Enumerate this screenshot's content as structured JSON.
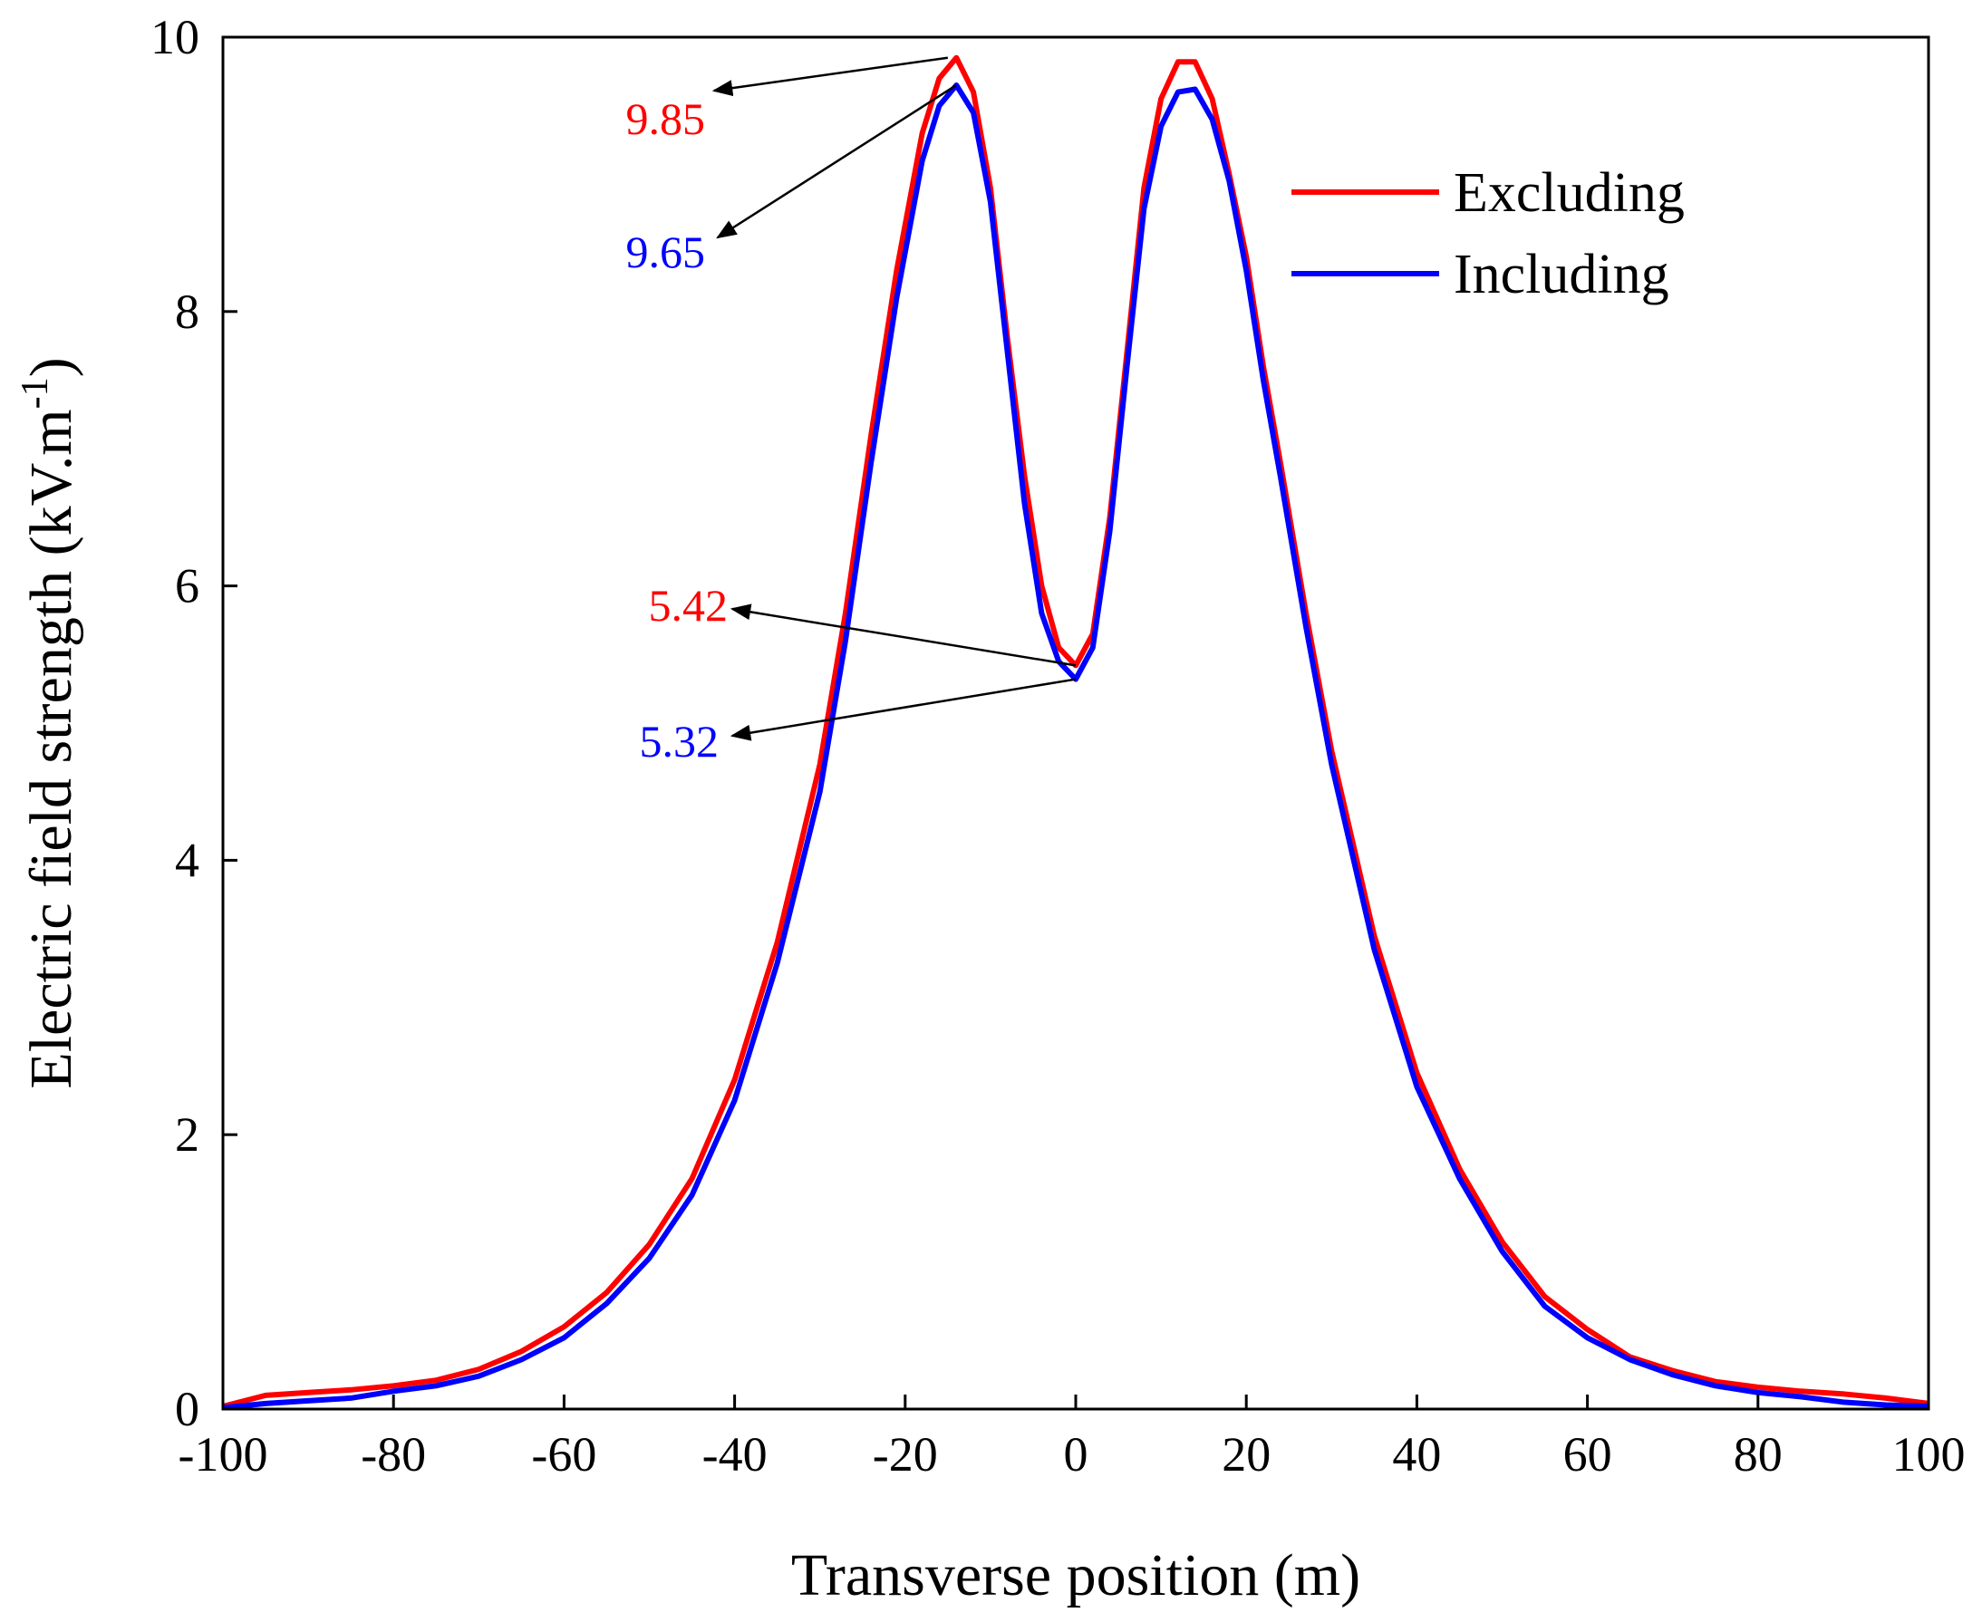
{
  "chart_data": {
    "type": "line",
    "title": "",
    "xlabel": "Transverse position (m)",
    "ylabel": "Electric field strength (kV.m",
    "ylabel_sup": "-1",
    "ylabel_close": ")",
    "xlim": [
      -100,
      100
    ],
    "ylim": [
      0,
      10
    ],
    "xticks": [
      "-100",
      "-80",
      "-60",
      "-40",
      "-20",
      "0",
      "20",
      "40",
      "60",
      "80",
      "100"
    ],
    "yticks": [
      "0",
      "2",
      "4",
      "6",
      "8",
      "10"
    ],
    "legend_position": "top-right",
    "x": [
      -100,
      -95,
      -90,
      -85,
      -80,
      -75,
      -70,
      -65,
      -60,
      -55,
      -50,
      -45,
      -40,
      -35,
      -30,
      -27,
      -24,
      -21,
      -18,
      -16,
      -14,
      -12,
      -10,
      -8,
      -6,
      -4,
      -2,
      0,
      2,
      4,
      6,
      8,
      10,
      12,
      14,
      16,
      18,
      20,
      22,
      24,
      27,
      30,
      35,
      40,
      45,
      50,
      55,
      60,
      65,
      70,
      75,
      80,
      85,
      90,
      95,
      100
    ],
    "series": [
      {
        "name": "Excluding",
        "color": "#ff0000",
        "values": [
          0.02,
          0.1,
          0.12,
          0.14,
          0.17,
          0.21,
          0.29,
          0.42,
          0.6,
          0.85,
          1.2,
          1.68,
          2.4,
          3.4,
          4.7,
          5.8,
          7.1,
          8.3,
          9.3,
          9.7,
          9.85,
          9.6,
          8.9,
          7.8,
          6.8,
          6.0,
          5.55,
          5.42,
          5.65,
          6.5,
          7.7,
          8.9,
          9.55,
          9.82,
          9.82,
          9.55,
          9.0,
          8.4,
          7.6,
          6.9,
          5.8,
          4.8,
          3.45,
          2.45,
          1.75,
          1.22,
          0.82,
          0.58,
          0.38,
          0.28,
          0.2,
          0.16,
          0.13,
          0.11,
          0.08,
          0.04
        ]
      },
      {
        "name": "Including",
        "color": "#0000ff",
        "values": [
          0.01,
          0.04,
          0.06,
          0.08,
          0.13,
          0.17,
          0.24,
          0.36,
          0.52,
          0.77,
          1.1,
          1.56,
          2.25,
          3.25,
          4.5,
          5.6,
          6.9,
          8.1,
          9.1,
          9.5,
          9.65,
          9.45,
          8.8,
          7.7,
          6.6,
          5.8,
          5.45,
          5.32,
          5.55,
          6.4,
          7.6,
          8.75,
          9.35,
          9.6,
          9.62,
          9.4,
          8.95,
          8.3,
          7.5,
          6.8,
          5.7,
          4.7,
          3.35,
          2.35,
          1.68,
          1.15,
          0.75,
          0.52,
          0.36,
          0.25,
          0.17,
          0.12,
          0.09,
          0.05,
          0.03,
          0.02
        ]
      }
    ],
    "annotations": [
      {
        "text": "9.85",
        "color": "#ff0000",
        "x": -15,
        "y": 9.85
      },
      {
        "text": "9.65",
        "color": "#0000ff",
        "x": -14,
        "y": 9.65
      },
      {
        "text": "5.42",
        "color": "#ff0000",
        "x": 0,
        "y": 5.42
      },
      {
        "text": "5.32",
        "color": "#0000ff",
        "x": 0,
        "y": 5.32
      }
    ]
  }
}
